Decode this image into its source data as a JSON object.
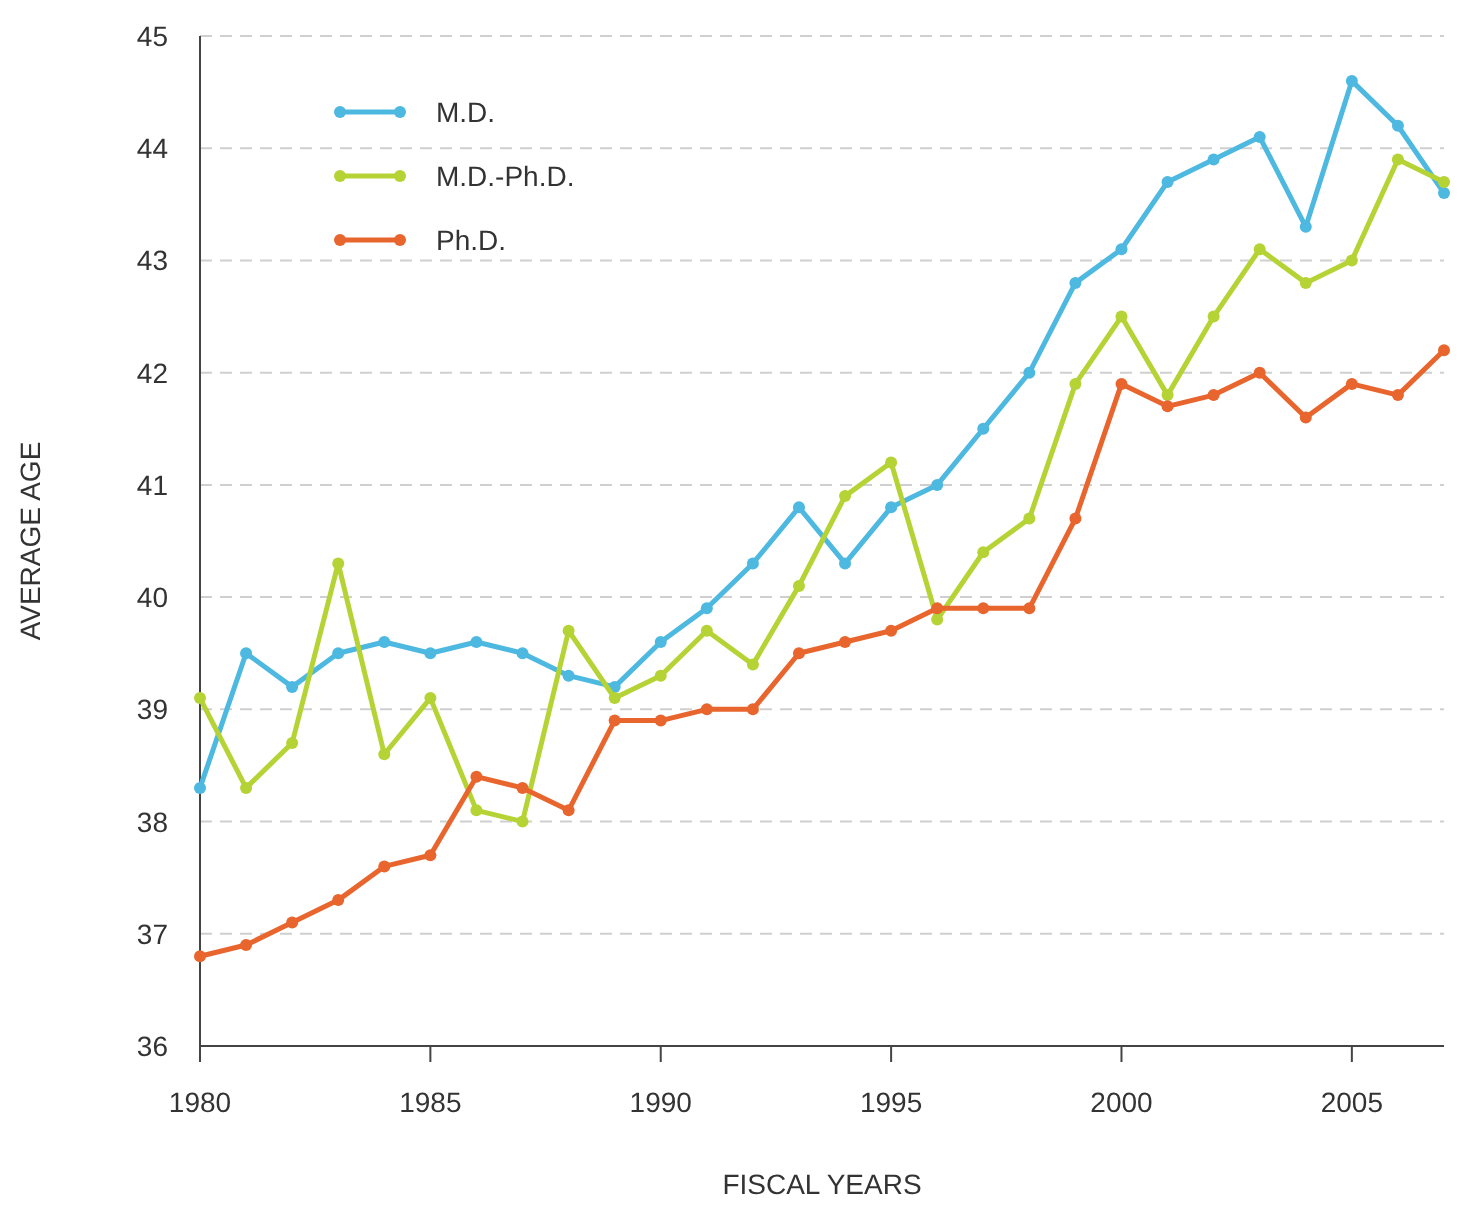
{
  "chart_data": {
    "type": "line",
    "xlabel": "FISCAL YEARS",
    "ylabel": "AVERAGE AGE",
    "x": [
      1980,
      1981,
      1982,
      1983,
      1984,
      1985,
      1986,
      1987,
      1988,
      1989,
      1990,
      1991,
      1992,
      1993,
      1994,
      1995,
      1996,
      1997,
      1998,
      1999,
      2000,
      2001,
      2002,
      2003,
      2004,
      2005,
      2006,
      2007
    ],
    "series": [
      {
        "name": "M.D.",
        "color": "#4db8e0",
        "values": [
          38.3,
          39.5,
          39.2,
          39.5,
          39.6,
          39.5,
          39.6,
          39.5,
          39.3,
          39.2,
          39.6,
          39.9,
          40.3,
          40.8,
          40.3,
          40.8,
          41.0,
          41.5,
          42.0,
          42.8,
          43.1,
          43.7,
          43.9,
          44.1,
          43.3,
          44.6,
          44.2,
          43.6
        ]
      },
      {
        "name": "M.D.-Ph.D.",
        "color": "#b5d334",
        "values": [
          39.1,
          38.3,
          38.7,
          40.3,
          38.6,
          39.1,
          38.1,
          38.0,
          39.7,
          39.1,
          39.3,
          39.7,
          39.4,
          40.1,
          40.9,
          41.2,
          39.8,
          40.4,
          40.7,
          41.9,
          42.5,
          41.8,
          42.5,
          43.1,
          42.8,
          43.0,
          43.9,
          43.7
        ]
      },
      {
        "name": "Ph.D.",
        "color": "#e8652d",
        "values": [
          36.8,
          36.9,
          37.1,
          37.3,
          37.6,
          37.7,
          38.4,
          38.3,
          38.1,
          38.9,
          38.9,
          39.0,
          39.0,
          39.5,
          39.6,
          39.7,
          39.9,
          39.9,
          39.9,
          40.7,
          41.9,
          41.7,
          41.8,
          42.0,
          41.6,
          41.9,
          41.8,
          42.2
        ]
      }
    ],
    "xlim": [
      1980,
      2007
    ],
    "xticks": [
      1980,
      1985,
      1990,
      1995,
      2000,
      2005
    ],
    "ylim": [
      36,
      45
    ],
    "yticks": [
      36,
      37,
      38,
      39,
      40,
      41,
      42,
      43,
      44,
      45
    ],
    "grid": "y",
    "legend": "top left",
    "marker": "circle",
    "line_style": "solid"
  }
}
